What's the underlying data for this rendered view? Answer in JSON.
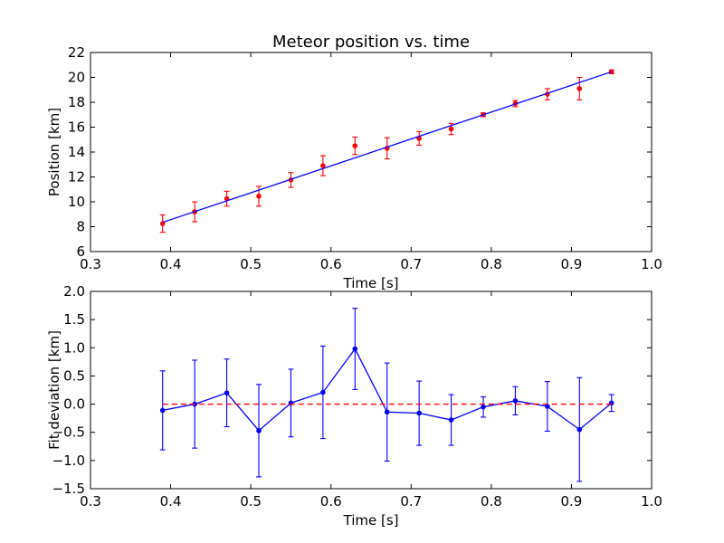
{
  "chart_data": [
    {
      "type": "scatter",
      "title": "Meteor position vs. time",
      "xlabel": "Time [s]",
      "ylabel": "Position [km]",
      "xlim": [
        0.3,
        1.0
      ],
      "ylim": [
        6,
        22
      ],
      "xticks": [
        "0.3",
        "0.4",
        "0.5",
        "0.6",
        "0.7",
        "0.8",
        "0.9",
        "1.0"
      ],
      "yticks": [
        "6",
        "8",
        "10",
        "12",
        "14",
        "16",
        "18",
        "20",
        "22"
      ],
      "grid": false,
      "series": [
        {
          "kind": "errorbar",
          "color": "#ff0000",
          "x": [
            0.39,
            0.43,
            0.47,
            0.51,
            0.55,
            0.59,
            0.63,
            0.67,
            0.71,
            0.75,
            0.79,
            0.83,
            0.87,
            0.91,
            0.95
          ],
          "y": [
            8.25,
            9.2,
            10.25,
            10.45,
            11.75,
            12.9,
            14.5,
            14.3,
            15.1,
            15.85,
            17.0,
            17.9,
            18.65,
            19.1,
            20.45
          ],
          "yerr": [
            0.7,
            0.8,
            0.6,
            0.8,
            0.6,
            0.8,
            0.7,
            0.85,
            0.55,
            0.45,
            0.15,
            0.25,
            0.45,
            0.9,
            0.15
          ]
        },
        {
          "kind": "line",
          "color": "#0000ff",
          "x": [
            0.39,
            0.95
          ],
          "y": [
            8.35,
            20.45
          ]
        }
      ]
    },
    {
      "type": "scatter",
      "title": "",
      "xlabel": "Time [s]",
      "ylabel": "Fit deviation [km]",
      "xlim": [
        0.3,
        1.0
      ],
      "ylim": [
        -1.5,
        2.0
      ],
      "xticks": [
        "0.3",
        "0.4",
        "0.5",
        "0.6",
        "0.7",
        "0.8",
        "0.9",
        "1.0"
      ],
      "yticks": [
        "−1.5",
        "−1.0",
        "−0.5",
        "0.0",
        "0.5",
        "1.0",
        "1.5",
        "2.0"
      ],
      "grid": false,
      "series": [
        {
          "kind": "errorbar-line",
          "color": "#0000ff",
          "x": [
            0.39,
            0.43,
            0.47,
            0.51,
            0.55,
            0.59,
            0.63,
            0.67,
            0.71,
            0.75,
            0.79,
            0.83,
            0.87,
            0.91,
            0.95
          ],
          "y": [
            -0.11,
            0.0,
            0.2,
            -0.47,
            0.02,
            0.21,
            0.98,
            -0.14,
            -0.16,
            -0.28,
            -0.05,
            0.06,
            -0.04,
            -0.45,
            0.02
          ],
          "yerr": [
            0.7,
            0.78,
            0.6,
            0.82,
            0.6,
            0.82,
            0.72,
            0.87,
            0.57,
            0.45,
            0.18,
            0.25,
            0.44,
            0.92,
            0.15
          ]
        },
        {
          "kind": "hline",
          "color": "#ff0000",
          "dashed": true,
          "x": [
            0.39,
            0.95
          ],
          "y": [
            0.0,
            0.0
          ]
        }
      ]
    }
  ]
}
